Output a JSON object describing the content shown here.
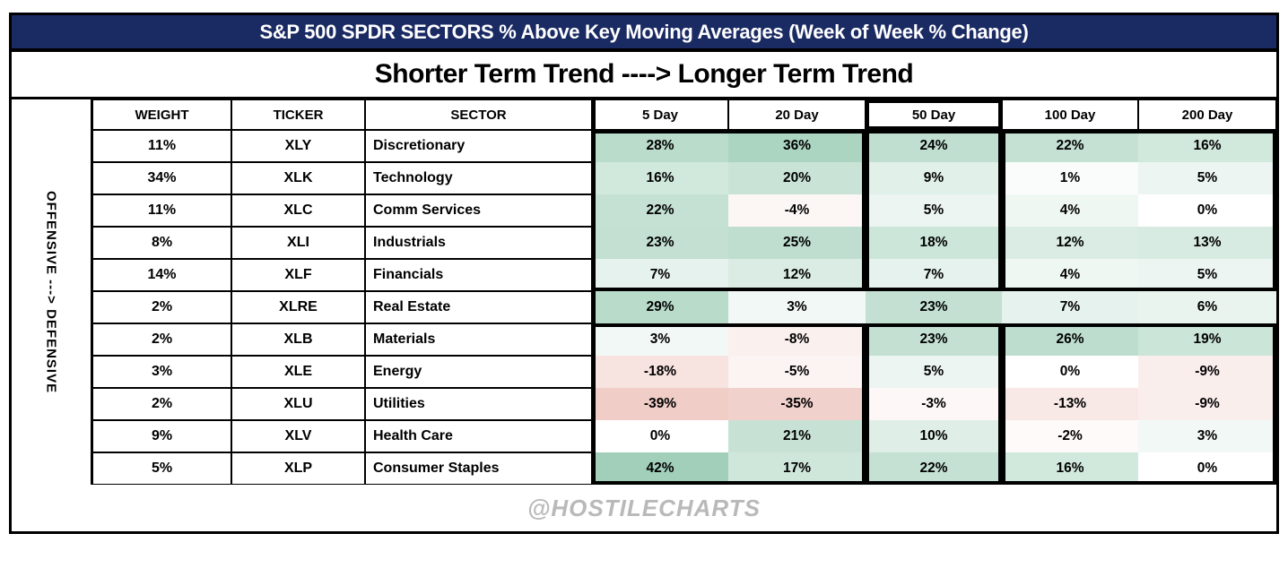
{
  "title": "S&P 500 SPDR SECTORS % Above Key Moving Averages (Week of Week % Change)",
  "subtitle": "Shorter Term Trend ----> Longer Term Trend",
  "side_label": "OFFENSIVE ---> DEFENSIVE",
  "footer": "@HOSTILECHARTS",
  "colors": {
    "title_bg": "#1a2a63",
    "title_text": "#ffffff",
    "border": "#000000",
    "heat_green_max": "#a1cfb9",
    "heat_red_max": "#f0cdc7",
    "heat_neutral": "#ffffff",
    "footer_text": "#b9b9b9",
    "green_scale_max": 42,
    "red_scale_max": 39
  },
  "chart_data": {
    "type": "heatmap",
    "title": "S&P 500 SPDR SECTORS % Above Key Moving Averages (Week of Week % Change)",
    "subtitle": "Shorter Term Trend ----> Longer Term Trend",
    "columns": [
      "WEIGHT",
      "TICKER",
      "SECTOR",
      "5 Day",
      "20 Day",
      "50 Day",
      "100 Day",
      "200 Day"
    ],
    "value_columns": [
      "5 Day",
      "20 Day",
      "50 Day",
      "100 Day",
      "200 Day"
    ],
    "unit": "%",
    "rows": [
      {
        "weight": "11%",
        "ticker": "XLY",
        "sector": "Discretionary",
        "values": [
          28,
          36,
          24,
          22,
          16
        ]
      },
      {
        "weight": "34%",
        "ticker": "XLK",
        "sector": "Technology",
        "values": [
          16,
          20,
          9,
          1,
          5
        ]
      },
      {
        "weight": "11%",
        "ticker": "XLC",
        "sector": "Comm Services",
        "values": [
          22,
          -4,
          5,
          4,
          0
        ]
      },
      {
        "weight": "8%",
        "ticker": "XLI",
        "sector": "Industrials",
        "values": [
          23,
          25,
          18,
          12,
          13
        ]
      },
      {
        "weight": "14%",
        "ticker": "XLF",
        "sector": "Financials",
        "values": [
          7,
          12,
          7,
          4,
          5
        ]
      },
      {
        "weight": "2%",
        "ticker": "XLRE",
        "sector": "Real Estate",
        "values": [
          29,
          3,
          23,
          7,
          6
        ]
      },
      {
        "weight": "2%",
        "ticker": "XLB",
        "sector": "Materials",
        "values": [
          3,
          -8,
          23,
          26,
          19
        ]
      },
      {
        "weight": "3%",
        "ticker": "XLE",
        "sector": "Energy",
        "values": [
          -18,
          -5,
          5,
          0,
          -9
        ]
      },
      {
        "weight": "2%",
        "ticker": "XLU",
        "sector": "Utilities",
        "values": [
          -39,
          -35,
          -3,
          -13,
          -9
        ]
      },
      {
        "weight": "9%",
        "ticker": "XLV",
        "sector": "Health Care",
        "values": [
          0,
          21,
          10,
          -2,
          3
        ]
      },
      {
        "weight": "5%",
        "ticker": "XLP",
        "sector": "Consumer Staples",
        "values": [
          42,
          17,
          22,
          16,
          0
        ]
      }
    ]
  }
}
